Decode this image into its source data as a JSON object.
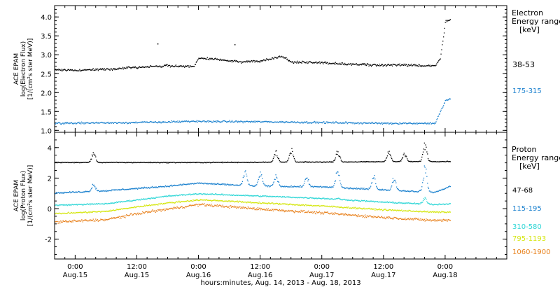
{
  "chart_data": [
    {
      "type": "scatter",
      "panel": "electron",
      "ylabel_lines": [
        "ACE EPAM",
        "log(Electron Flux)",
        "[1/(cm²s ster MeV)]"
      ],
      "yticks": [
        "1.0",
        "1.5",
        "2.0",
        "2.5",
        "3.0",
        "3.5",
        "4.0"
      ],
      "ylim": [
        0.95,
        4.3
      ],
      "legend_title_lines": [
        "Electron",
        "Energy ranges",
        "[keV]"
      ],
      "series": [
        {
          "name": "38-53",
          "color": "#000000",
          "profile": [
            [
              -4,
              2.62
            ],
            [
              0,
              2.6
            ],
            [
              6,
              2.63
            ],
            [
              12,
              2.68
            ],
            [
              18,
              2.72
            ],
            [
              23,
              2.7
            ],
            [
              24,
              2.92
            ],
            [
              28,
              2.88
            ],
            [
              32,
              2.82
            ],
            [
              36,
              2.85
            ],
            [
              38,
              2.9
            ],
            [
              40,
              2.98
            ],
            [
              42,
              2.82
            ],
            [
              48,
              2.8
            ],
            [
              54,
              2.76
            ],
            [
              60,
              2.74
            ],
            [
              66,
              2.73
            ],
            [
              70,
              2.72
            ],
            [
              71,
              2.9
            ],
            [
              72,
              3.9
            ],
            [
              73,
              3.95
            ]
          ]
        },
        {
          "name": "175-315",
          "color": "#1a80ce",
          "profile": [
            [
              -4,
              1.2
            ],
            [
              12,
              1.22
            ],
            [
              24,
              1.25
            ],
            [
              36,
              1.24
            ],
            [
              48,
              1.22
            ],
            [
              60,
              1.2
            ],
            [
              70,
              1.2
            ],
            [
              71,
              1.5
            ],
            [
              72,
              1.8
            ],
            [
              73,
              1.85
            ]
          ]
        }
      ]
    },
    {
      "type": "scatter",
      "panel": "proton",
      "ylabel_lines": [
        "ACE EPAM",
        "log(Proton Flux)",
        "[1/(cm²s ster MeV)]"
      ],
      "yticks": [
        "-2",
        "0",
        "2",
        "4"
      ],
      "ylim": [
        -3.3,
        5.0
      ],
      "legend_title_lines": [
        "Proton",
        "Energy ranges",
        "[keV]"
      ],
      "series": [
        {
          "name": "47-68",
          "color": "#000000",
          "profile": [
            [
              -4,
              3.05
            ],
            [
              24,
              3.05
            ],
            [
              48,
              3.08
            ],
            [
              73,
              3.12
            ]
          ],
          "spikes": [
            [
              3.5,
              3.8
            ],
            [
              39,
              3.9
            ],
            [
              42,
              4.0
            ],
            [
              51,
              3.9
            ],
            [
              61,
              3.9
            ],
            [
              64,
              3.7
            ],
            [
              68,
              4.4
            ]
          ]
        },
        {
          "name": "115-195",
          "color": "#1a80ce",
          "profile": [
            [
              -4,
              1.05
            ],
            [
              6,
              1.2
            ],
            [
              12,
              1.35
            ],
            [
              18,
              1.5
            ],
            [
              24,
              1.7
            ],
            [
              28,
              1.62
            ],
            [
              36,
              1.5
            ],
            [
              48,
              1.45
            ],
            [
              60,
              1.25
            ],
            [
              70,
              1.1
            ],
            [
              73,
              1.5
            ]
          ],
          "spikes": [
            [
              3.5,
              1.7
            ],
            [
              33,
              2.6
            ],
            [
              36,
              2.5
            ],
            [
              39,
              2.3
            ],
            [
              45,
              2.2
            ],
            [
              51,
              2.8
            ],
            [
              58,
              2.4
            ],
            [
              62,
              2.2
            ],
            [
              68,
              3.0
            ]
          ]
        },
        {
          "name": "310-580",
          "color": "#2ed6d6",
          "profile": [
            [
              -4,
              0.25
            ],
            [
              6,
              0.35
            ],
            [
              12,
              0.6
            ],
            [
              18,
              0.85
            ],
            [
              24,
              1.0
            ],
            [
              28,
              0.95
            ],
            [
              36,
              0.85
            ],
            [
              48,
              0.7
            ],
            [
              60,
              0.45
            ],
            [
              70,
              0.3
            ],
            [
              73,
              0.35
            ]
          ],
          "spikes": [
            [
              51,
              0.7
            ],
            [
              68,
              0.8
            ]
          ]
        },
        {
          "name": "795-1193",
          "color": "#d4e60e",
          "profile": [
            [
              -4,
              -0.3
            ],
            [
              6,
              -0.15
            ],
            [
              12,
              0.15
            ],
            [
              18,
              0.4
            ],
            [
              24,
              0.6
            ],
            [
              28,
              0.55
            ],
            [
              36,
              0.4
            ],
            [
              48,
              0.2
            ],
            [
              60,
              -0.05
            ],
            [
              70,
              -0.2
            ],
            [
              73,
              -0.2
            ]
          ]
        },
        {
          "name": "1060-1900",
          "color": "#e8821e",
          "profile": [
            [
              -4,
              -0.85
            ],
            [
              6,
              -0.7
            ],
            [
              12,
              -0.3
            ],
            [
              18,
              0.0
            ],
            [
              24,
              0.3
            ],
            [
              28,
              0.2
            ],
            [
              36,
              0.0
            ],
            [
              48,
              -0.25
            ],
            [
              60,
              -0.55
            ],
            [
              70,
              -0.75
            ],
            [
              73,
              -0.7
            ]
          ]
        }
      ]
    }
  ],
  "xaxis": {
    "xlim_hours": [
      -4,
      84
    ],
    "major_ticks": [
      {
        "hour": 0,
        "time": "0:00",
        "date": "Aug.15"
      },
      {
        "hour": 12,
        "time": "12:00",
        "date": "Aug.15"
      },
      {
        "hour": 24,
        "time": "0:00",
        "date": "Aug.16"
      },
      {
        "hour": 36,
        "time": "12:00",
        "date": "Aug.16"
      },
      {
        "hour": 48,
        "time": "0:00",
        "date": "Aug.17"
      },
      {
        "hour": 60,
        "time": "12:00",
        "date": "Aug.17"
      },
      {
        "hour": 72,
        "time": "0:00",
        "date": "Aug.18"
      }
    ],
    "label": "hours:minutes, Aug. 14, 2013 - Aug. 18, 2013"
  }
}
